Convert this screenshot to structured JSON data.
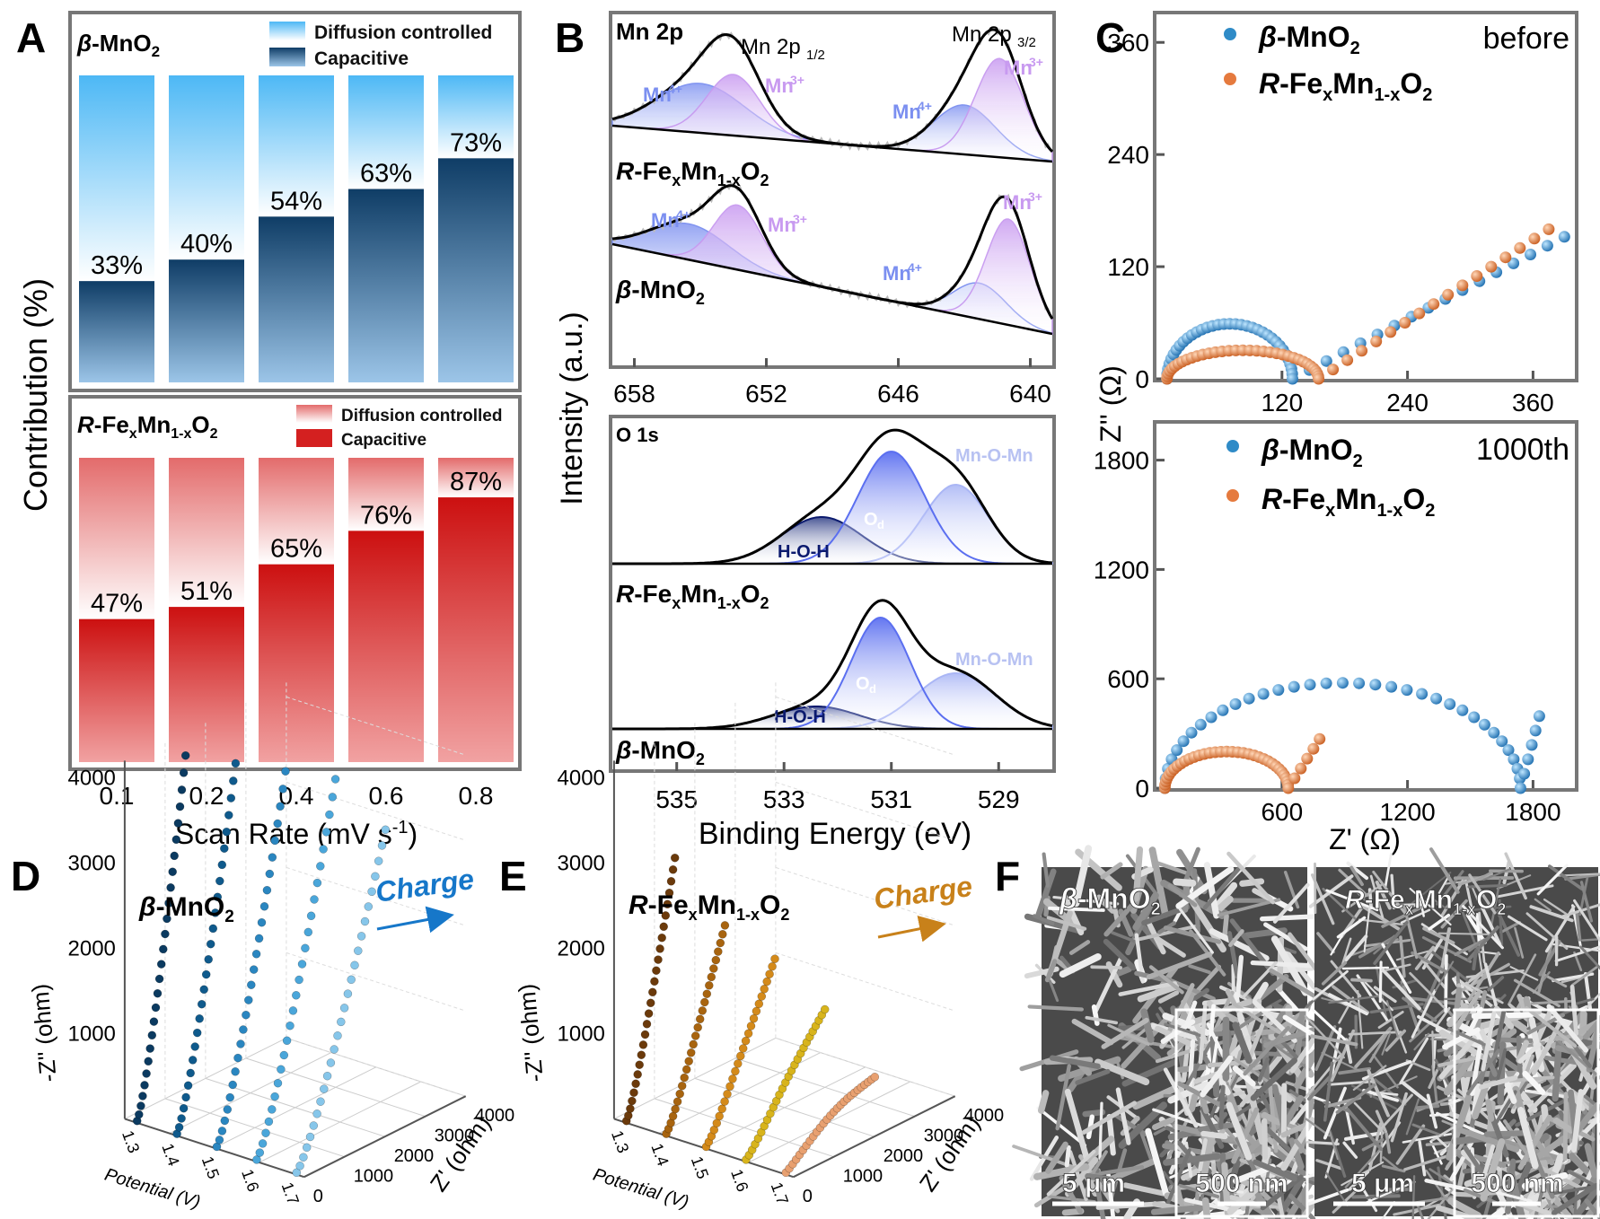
{
  "figure": {
    "panel_letters": [
      "A",
      "B",
      "C",
      "D",
      "E",
      "F"
    ]
  },
  "chart_data": [
    {
      "id": "A-top",
      "type": "bar",
      "material": "β-MnO2",
      "categories": [
        "0.1",
        "0.2",
        "0.4",
        "0.6",
        "0.8"
      ],
      "series": [
        {
          "name": "Capacitive",
          "values": [
            33,
            40,
            54,
            63,
            73
          ]
        },
        {
          "name": "Diffusion controlled",
          "values": [
            67,
            60,
            46,
            37,
            27
          ]
        }
      ],
      "labels": [
        "33%",
        "40%",
        "54%",
        "63%",
        "73%"
      ],
      "legend": [
        "Diffusion controlled",
        "Capacitive"
      ],
      "ylabel": "Contribution (%)",
      "ylim": [
        0,
        100
      ]
    },
    {
      "id": "A-bottom",
      "type": "bar",
      "material": "R-FexMn1-xO2",
      "categories": [
        "0.1",
        "0.2",
        "0.4",
        "0.6",
        "0.8"
      ],
      "series": [
        {
          "name": "Capacitive",
          "values": [
            47,
            51,
            65,
            76,
            87
          ]
        },
        {
          "name": "Diffusion controlled",
          "values": [
            53,
            49,
            35,
            24,
            13
          ]
        }
      ],
      "labels": [
        "47%",
        "51%",
        "65%",
        "76%",
        "87%"
      ],
      "legend": [
        "Diffusion controlled",
        "Capacitive"
      ],
      "xlabel": "Scan Rate (mV s-1)",
      "ylim": [
        0,
        100
      ]
    },
    {
      "id": "B-top",
      "type": "line",
      "title": "Mn 2p",
      "x_ticks": [
        658,
        652,
        646,
        640
      ],
      "xlim": [
        659,
        639
      ],
      "peaks": {
        "R-FexMn1-xO2": {
          "Mn4+": [
            655.0,
            643.0
          ],
          "Mn3+": [
            653.5,
            641.4
          ]
        },
        "β-MnO2": {
          "Mn4+": [
            655.5,
            642.3
          ],
          "Mn3+": [
            653.3,
            641.0
          ]
        }
      },
      "peak_labels": [
        "Mn 2p1/2",
        "Mn 2p3/2",
        "Mn4+",
        "Mn3+"
      ],
      "samples": [
        "R-FexMn1-xO2",
        "β-MnO2"
      ],
      "ylabel": "Intensity (a.u.)"
    },
    {
      "id": "B-bottom",
      "type": "line",
      "title": "O 1s",
      "x_ticks": [
        535,
        533,
        531,
        529
      ],
      "xlim": [
        536.2,
        528
      ],
      "components": [
        "H-O-H",
        "Od",
        "Mn-O-Mn"
      ],
      "peaks": {
        "R-FexMn1-xO2": {
          "H-O-H": 532.3,
          "Od": 531.0,
          "Mn-O-Mn": 529.8
        },
        "β-MnO2": {
          "H-O-H": 532.4,
          "Od": 531.2,
          "Mn-O-Mn": 529.8
        }
      },
      "samples": [
        "R-FexMn1-xO2",
        "β-MnO2"
      ],
      "xlabel": "Binding Energy (eV)"
    },
    {
      "id": "C-top",
      "type": "scatter",
      "note": "before",
      "xlim": [
        0,
        400
      ],
      "ylim": [
        0,
        390
      ],
      "x_ticks": [
        120,
        240,
        360
      ],
      "y_ticks": [
        0,
        120,
        240,
        360
      ],
      "legend": [
        "β-MnO2",
        "R-FexMn1-xO2"
      ],
      "series": [
        {
          "name": "β-MnO2",
          "rs": 10,
          "rct": 120,
          "warburg_end": [
            390,
            152
          ]
        },
        {
          "name": "R-FexMn1-xO2",
          "rs": 10,
          "rct": 145,
          "warburg_end": [
            375,
            160
          ]
        }
      ]
    },
    {
      "id": "C-bottom",
      "type": "scatter",
      "note": "1000th",
      "xlim": [
        0,
        2000
      ],
      "ylim": [
        0,
        2000
      ],
      "x_ticks": [
        600,
        1200,
        1800
      ],
      "y_ticks": [
        0,
        600,
        1200,
        1800
      ],
      "legend": [
        "β-MnO2",
        "R-FexMn1-xO2"
      ],
      "xlabel": "Z' (Ω)",
      "ylabel": "Z'' (Ω)",
      "series": [
        {
          "name": "β-MnO2",
          "rs": 40,
          "rct": 1700,
          "tail_end": [
            1830,
            395
          ]
        },
        {
          "name": "R-FexMn1-xO2",
          "rs": 40,
          "rct": 590,
          "tail_end": [
            780,
            270
          ]
        }
      ]
    },
    {
      "id": "D",
      "type": "scatter",
      "title": "β-MnO2",
      "arrow_label": "Charge",
      "potentials": [
        "1.3",
        "1.4",
        "1.5",
        "1.6",
        "1.7"
      ],
      "z_ticks": [
        "1000",
        "2000",
        "3000",
        "4000"
      ],
      "zr_ticks": [
        "0",
        "1000",
        "2000",
        "3000",
        "4000"
      ],
      "xlabel": "Potential (V)",
      "ylabel": "Z' (ohm)",
      "zlabel": "-Z'' (ohm)",
      "max_z": [
        4000,
        4000,
        4000,
        4000,
        3500
      ]
    },
    {
      "id": "E",
      "type": "scatter",
      "title": "R-FexMn1-xO2",
      "arrow_label": "Charge",
      "potentials": [
        "1.3",
        "1.4",
        "1.5",
        "1.6",
        "1.7"
      ],
      "z_ticks": [
        "1000",
        "2000",
        "3000",
        "4000"
      ],
      "zr_ticks": [
        "0",
        "1000",
        "2000",
        "3000",
        "4000"
      ],
      "xlabel": "Potential (V)",
      "ylabel": "Z' (ohm)",
      "zlabel": "-Z'' (ohm)",
      "max_z": [
        2800,
        2100,
        1800,
        1300,
        600
      ]
    }
  ],
  "sem": {
    "labels": [
      "β-MnO2",
      "R-FexMn1-xO2"
    ],
    "scalebars": [
      "5 μm",
      "500 nm",
      "5 μm",
      "500 nm"
    ]
  },
  "colors": {
    "bar_blue_dark": "#0f3d66",
    "bar_blue_light": "#9cc5e8",
    "bar_sky": "#4db8f5",
    "bar_red_dark": "#cc1010",
    "bar_red_light": "#f1a2a2",
    "eis_blue": "#2f8bc7",
    "eis_orange": "#e57a3e",
    "xps_blue": "#7b8ff0",
    "xps_purple": "#c89af0",
    "xps_navy": "#0b1a6e",
    "charge_blue": "#1677c9",
    "charge_orange": "#c8811a"
  }
}
